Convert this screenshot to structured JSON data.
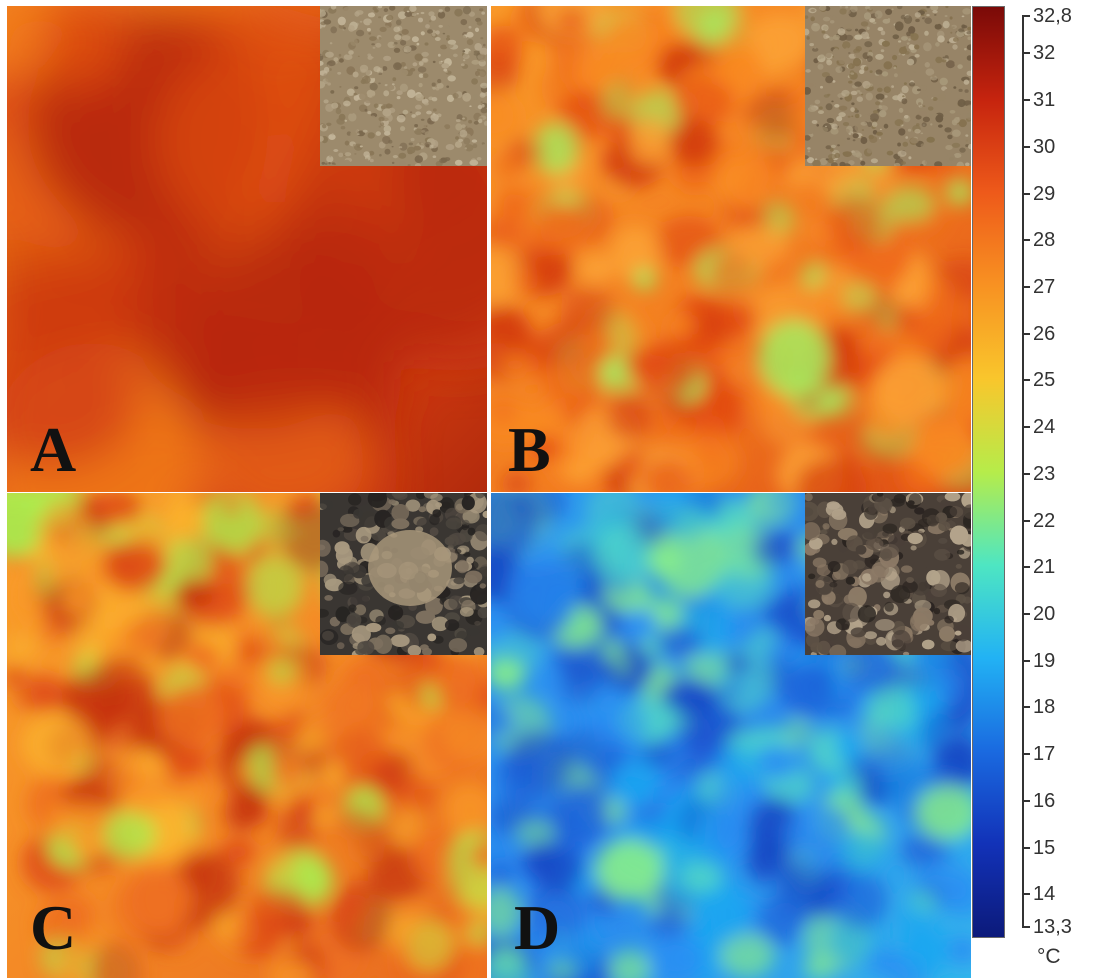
{
  "panels": [
    {
      "label": "A",
      "palette": [
        "#f0781a",
        "#e8641a",
        "#dc4c12",
        "#cf3c10",
        "#b8280a"
      ]
    },
    {
      "label": "B",
      "palette": [
        "#fba336",
        "#f98a22",
        "#ef6a1a",
        "#e24812",
        "#d33c10",
        "#a8e65c"
      ]
    },
    {
      "label": "C",
      "palette": [
        "#fbb52e",
        "#f99a28",
        "#ee7020",
        "#de4a16",
        "#c63410",
        "#a8f050"
      ]
    },
    {
      "label": "D",
      "palette": [
        "#1aa6f0",
        "#2a8ef2",
        "#1e62d8",
        "#1948c4",
        "#52d8c6",
        "#86ec8c"
      ]
    }
  ],
  "colorbar": {
    "max_label": "32,8",
    "min_label": "13,3",
    "ticks": [
      "32",
      "31",
      "30",
      "29",
      "28",
      "27",
      "26",
      "25",
      "24",
      "23",
      "22",
      "21",
      "20",
      "19",
      "18",
      "17",
      "16",
      "15",
      "14"
    ],
    "unit": "°C",
    "gradient": [
      "#7a0a08",
      "#c6240e",
      "#ee5a1a",
      "#f89222",
      "#f9c62c",
      "#b6ec4a",
      "#4ee6c2",
      "#22b2f4",
      "#1a6ae0",
      "#1232b8",
      "#0c1a7a"
    ]
  }
}
